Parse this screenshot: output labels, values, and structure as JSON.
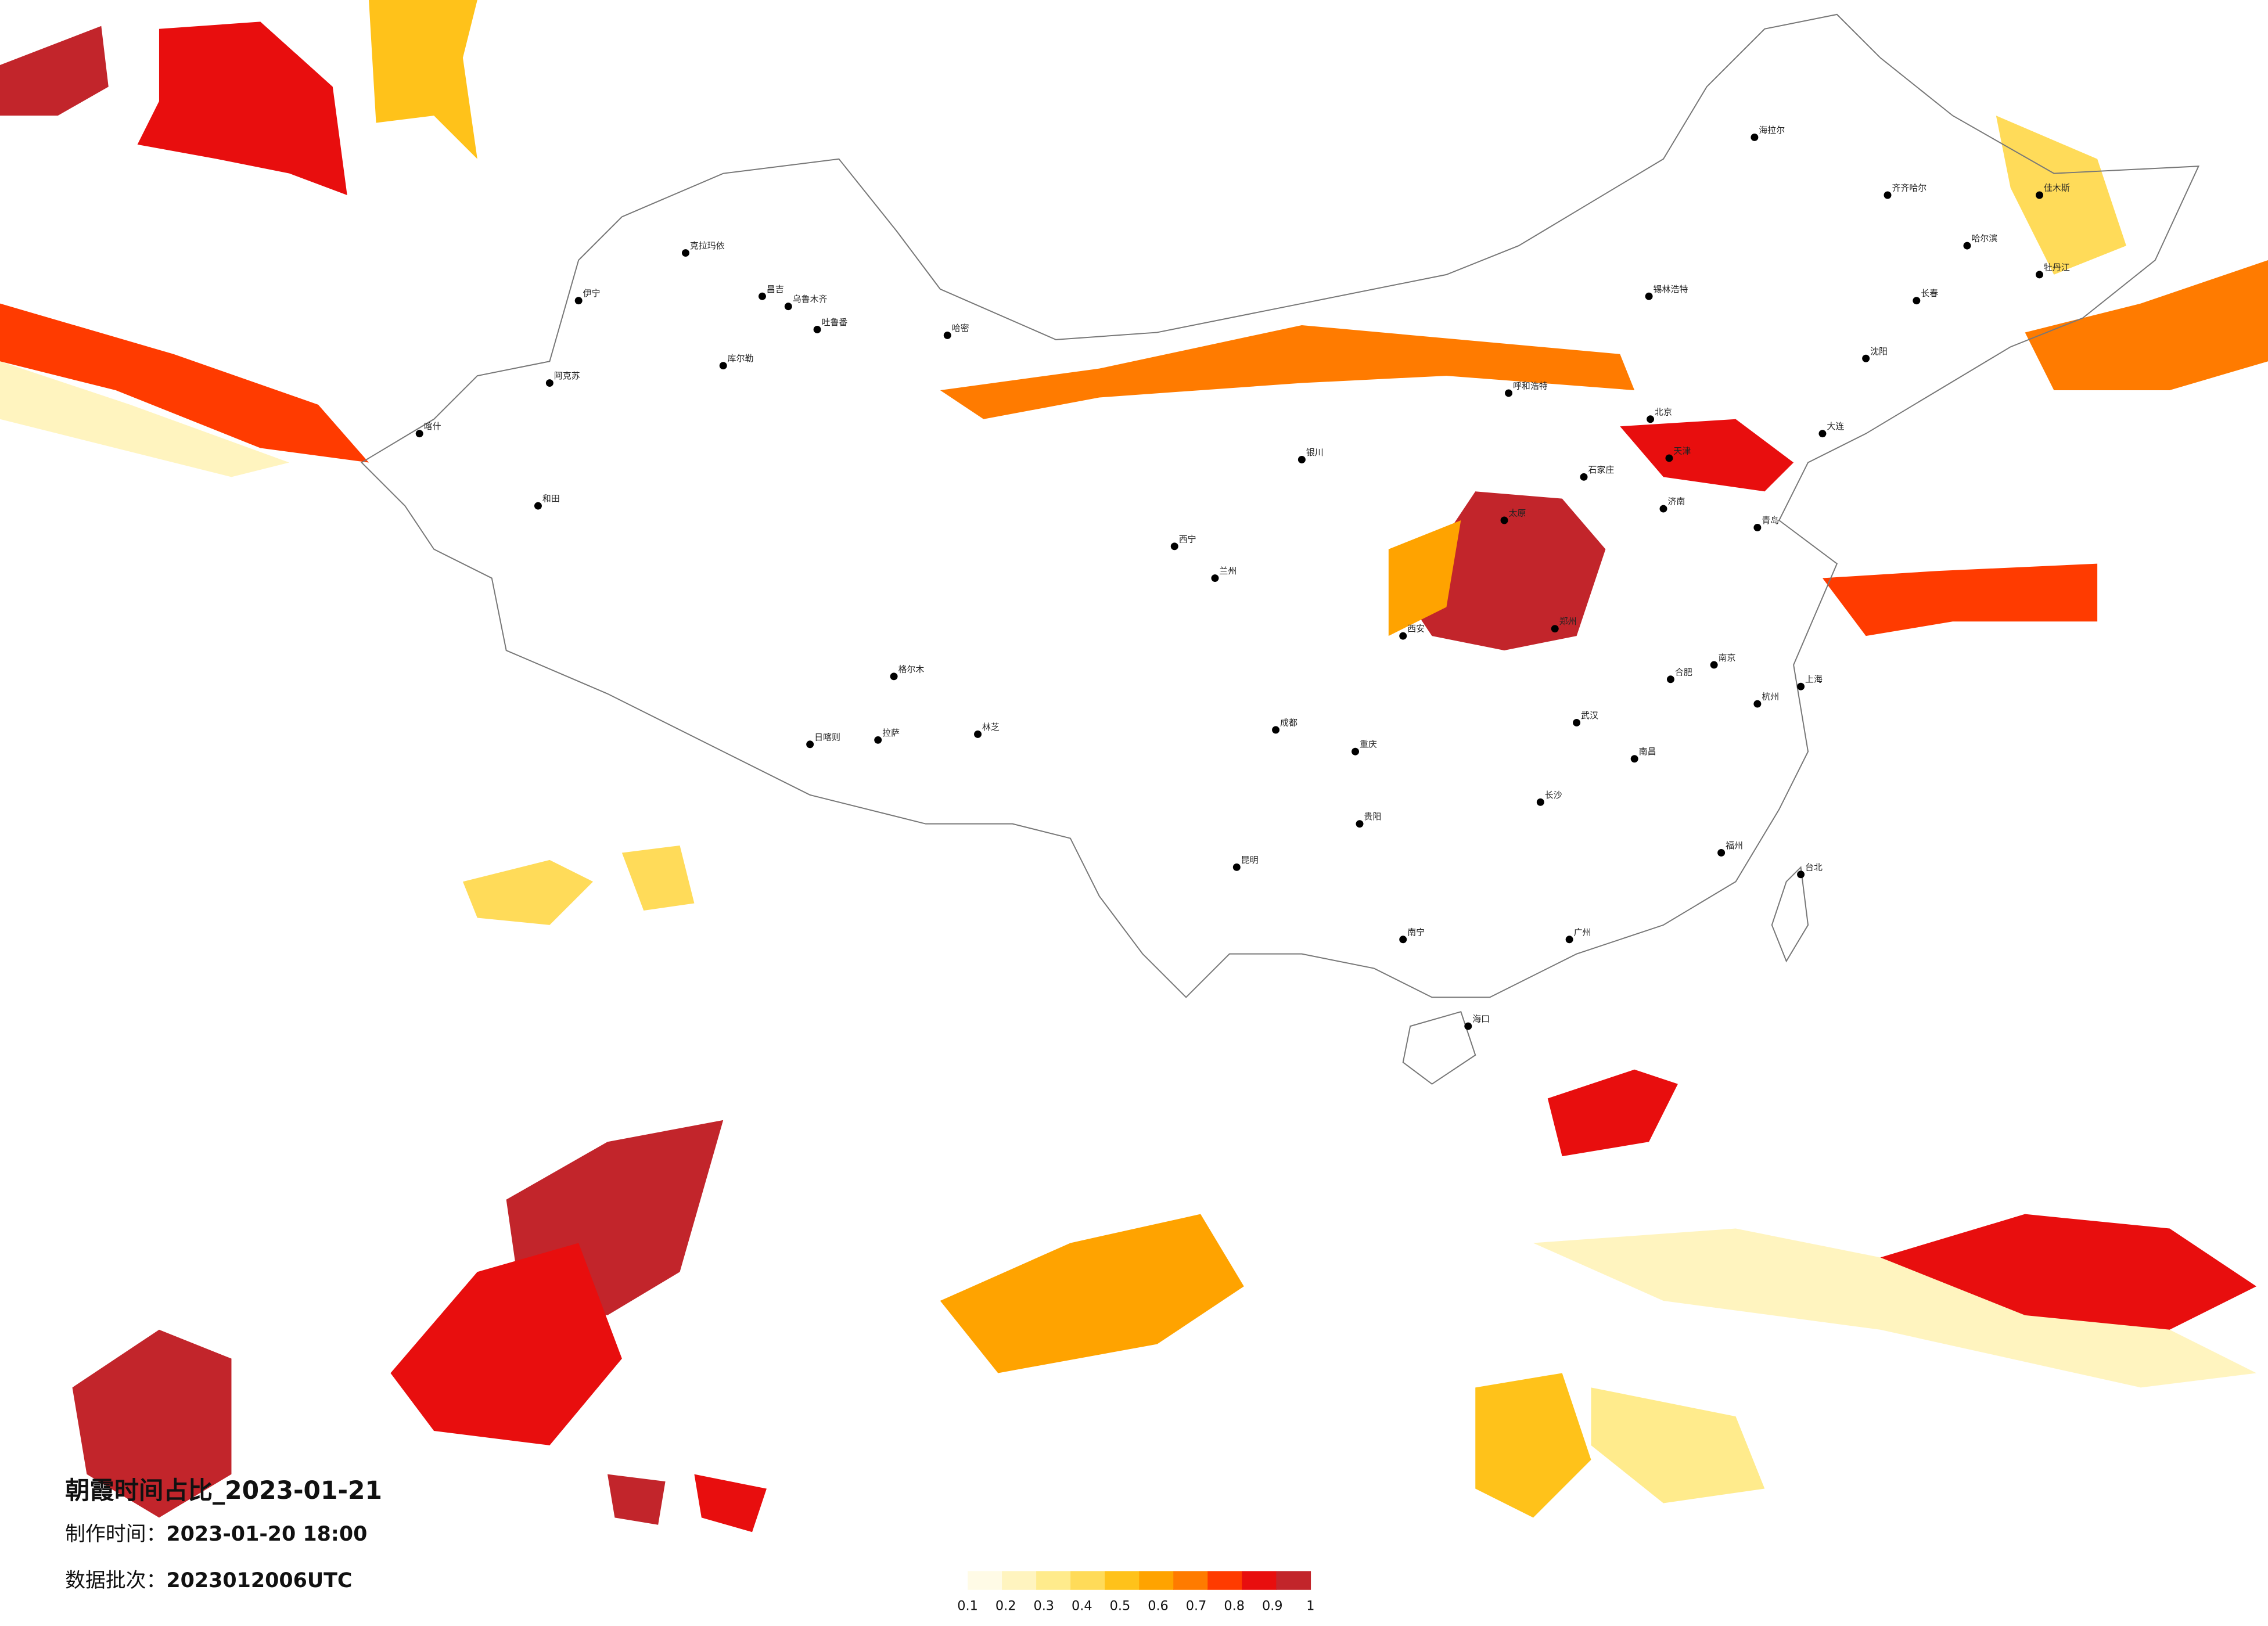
{
  "title": "朝霞时间占比_2023-01-21",
  "make_time": {
    "label": "制作时间：",
    "value": "2023-01-20 18:00"
  },
  "data_batch": {
    "label": "数据批次：",
    "value": "2023012006UTC"
  },
  "legend": {
    "colors": [
      "#fffbe6",
      "#fff4bf",
      "#ffeb8c",
      "#ffdb59",
      "#ffc21a",
      "#ffa300",
      "#ff7b00",
      "#ff3b00",
      "#e80e0e",
      "#c2252b"
    ],
    "ticks": [
      0.1,
      0.2,
      0.3,
      0.4,
      0.5,
      0.6,
      0.7,
      0.8,
      0.9,
      1
    ]
  },
  "cities": [
    "克拉玛依",
    "昌吉",
    "乌鲁木齐",
    "吐鲁番",
    "哈密",
    "伊宁",
    "阿克苏",
    "库尔勒",
    "和田",
    "喀什",
    "格尔木",
    "日喀则",
    "拉萨",
    "林芝",
    "西宁",
    "呼和浩特",
    "北京",
    "天津",
    "石家庄",
    "太原",
    "济南",
    "郑州",
    "西安",
    "兰州",
    "银川",
    "成都",
    "重庆",
    "武汉",
    "长沙",
    "南昌",
    "杭州",
    "上海",
    "南京",
    "合肥",
    "福州",
    "广州",
    "南宁",
    "贵阳",
    "昆明",
    "海口",
    "台北",
    "哈尔滨",
    "长春",
    "沈阳",
    "大连",
    "青岛",
    "齐齐哈尔",
    "海拉尔",
    "锡林浩特",
    "佳木斯",
    "牡丹江"
  ]
}
